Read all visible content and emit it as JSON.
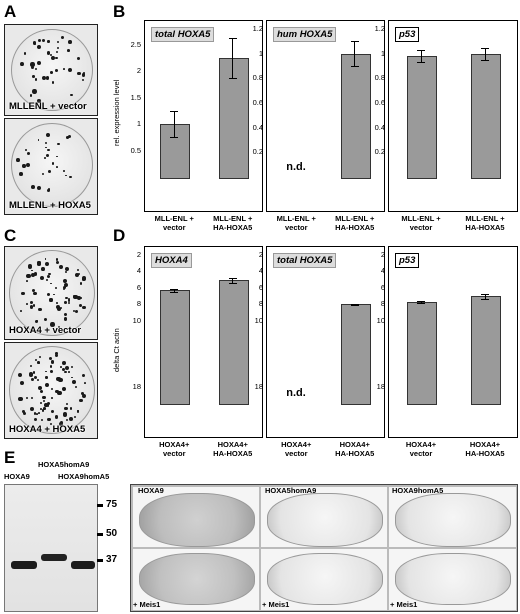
{
  "panels": {
    "A": "A",
    "B": "B",
    "C": "C",
    "D": "D",
    "E": "E"
  },
  "panel_A": {
    "top_label": "MLLENL + vector",
    "bottom_label": "MLLENL + HOXA5"
  },
  "panel_C": {
    "top_label": "HOXA4 + vector",
    "bottom_label": "HOXA4 + HOXA5"
  },
  "chart_data": [
    {
      "id": "B1",
      "type": "bar",
      "tag": "total HOXA5",
      "ylabel": "rel. expression level",
      "categories": [
        "MLL-ENL +\nvector",
        "MLL-ENL +\nHA-HOXA5"
      ],
      "values": [
        1.0,
        2.25
      ],
      "errors": [
        0.25,
        0.38
      ],
      "ylim": [
        0,
        2.8
      ],
      "ticks": [
        0.5,
        1,
        1.5,
        2,
        2.5
      ]
    },
    {
      "id": "B2",
      "type": "bar",
      "tag": "hum HOXA5",
      "ylabel": "",
      "categories": [
        "MLL-ENL +\nvector",
        "MLL-ENL +\nHA-HOXA5"
      ],
      "values": [
        null,
        1.0
      ],
      "errors": [
        0,
        0.1
      ],
      "nd": [
        "n.d.",
        ""
      ],
      "ylim": [
        0,
        1.2
      ],
      "ticks": [
        0.2,
        0.4,
        0.6,
        0.8,
        1,
        1.2
      ]
    },
    {
      "id": "B3",
      "type": "bar",
      "tag": "p53",
      "ylabel": "",
      "categories": [
        "MLL-ENL +\nvector",
        "MLL-ENL +\nHA-HOXA5"
      ],
      "values": [
        0.98,
        1.0
      ],
      "errors": [
        0.05,
        0.05
      ],
      "ylim": [
        0,
        1.2
      ],
      "ticks": [
        0.2,
        0.4,
        0.6,
        0.8,
        1,
        1.2
      ]
    },
    {
      "id": "D1",
      "type": "bar",
      "tag": "HOXA4",
      "ylabel": "delta Ct actin",
      "categories": [
        "HOXA4+\nvector",
        "HOXA4+\nHA-HOXA5"
      ],
      "values": [
        6.3,
        5.1
      ],
      "errors": [
        0.2,
        0.25
      ],
      "ylim": [
        2,
        20
      ],
      "inverted": true,
      "ticks": [
        2,
        4,
        6,
        8,
        10,
        18
      ]
    },
    {
      "id": "D2",
      "type": "bar",
      "tag": "total HOXA5",
      "ylabel": "",
      "categories": [
        "HOXA4+\nvector",
        "HOXA4+\nHA-HOXA5"
      ],
      "values": [
        null,
        8.0
      ],
      "errors": [
        0,
        0.1
      ],
      "nd": [
        "n.d.",
        ""
      ],
      "ylim": [
        2,
        20
      ],
      "inverted": true,
      "ticks": [
        2,
        4,
        6,
        8,
        10,
        18
      ]
    },
    {
      "id": "D3",
      "type": "bar",
      "tag": "p53",
      "ylabel": "",
      "categories": [
        "HOXA4+\nvector",
        "HOXA4+\nHA-HOXA5"
      ],
      "values": [
        7.7,
        7.0
      ],
      "errors": [
        0.1,
        0.3
      ],
      "ylim": [
        2,
        20
      ],
      "inverted": true,
      "ticks": [
        2,
        4,
        6,
        8,
        10,
        18
      ]
    }
  ],
  "panel_E": {
    "blot_labels": {
      "lane1": "HOXA9",
      "lane2": "HOXA5homA9",
      "lane3": "HOXA9homA5"
    },
    "markers": [
      "75",
      "50",
      "37"
    ],
    "dish_columns": [
      "HOXA9",
      "HOXA5homA9",
      "HOXA9homA5"
    ],
    "dish_bottom_labels": [
      "+ Meis1",
      "+ Meis1",
      "+ Meis1"
    ]
  }
}
